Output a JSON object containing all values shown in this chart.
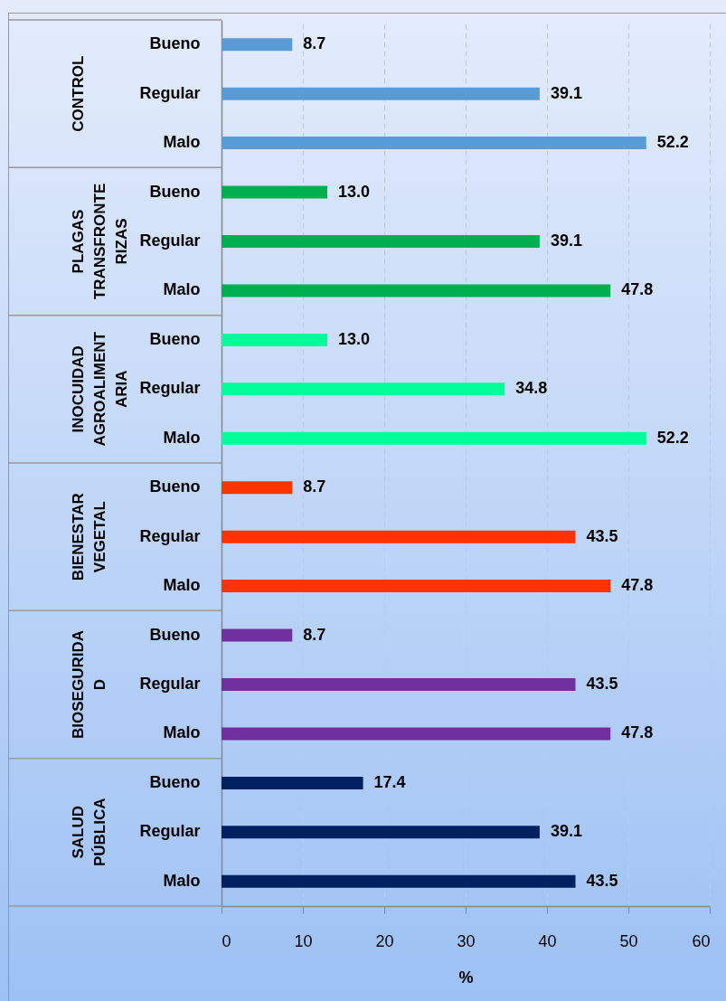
{
  "chart_data": {
    "type": "bar",
    "orientation": "horizontal",
    "xlabel": "%",
    "categories": [
      "Bueno",
      "Regular",
      "Malo",
      "Bueno",
      "Regular",
      "Malo",
      "Bueno",
      "Regular",
      "Malo",
      "Bueno",
      "Regular",
      "Malo",
      "Bueno",
      "Regular",
      "Malo",
      "Bueno",
      "Regular",
      "Malo"
    ],
    "values": [
      8.7,
      39.1,
      52.2,
      13.0,
      39.1,
      47.8,
      13.0,
      34.8,
      52.2,
      8.7,
      43.5,
      47.8,
      8.7,
      43.5,
      47.8,
      17.4,
      39.1,
      43.5
    ],
    "value_labels": [
      "8.7",
      "39.1",
      "52.2",
      "13.0",
      "39.1",
      "47.8",
      "13.0",
      "34.8",
      "52.2",
      "8.7",
      "43.5",
      "47.8",
      "8.7",
      "43.5",
      "47.8",
      "17.4",
      "39.1",
      "43.5"
    ],
    "colors": [
      "#5b9bd5",
      "#5b9bd5",
      "#5b9bd5",
      "#00b050",
      "#00b050",
      "#00b050",
      "#00ff99",
      "#00ff99",
      "#00ff99",
      "#ff3300",
      "#ff3300",
      "#ff3300",
      "#7030a0",
      "#7030a0",
      "#7030a0",
      "#002060",
      "#002060",
      "#002060"
    ],
    "annotations": [
      "CONTROL",
      "PLAGAS TRANSFRONTERIZAS",
      "INOCUIDAD AGROALIMENTARIA",
      "BIENESTAR VEGETAL",
      "BIOSEGURIDAD",
      "SALUD PÚBLICA"
    ],
    "xlim": [
      0,
      60
    ],
    "xticks": [
      0,
      10,
      20,
      30,
      40,
      50,
      60
    ],
    "grid": "x"
  }
}
